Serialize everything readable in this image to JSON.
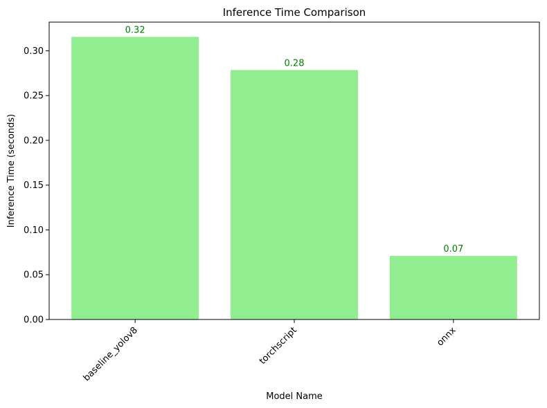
{
  "chart_data": {
    "type": "bar",
    "title": "Inference Time Comparison",
    "xlabel": "Model Name",
    "ylabel": "Inference Time (seconds)",
    "categories": [
      "baseline_yolov8",
      "torchscript",
      "onnx"
    ],
    "values": [
      0.3155,
      0.2785,
      0.071
    ],
    "data_labels": [
      "0.32",
      "0.28",
      "0.07"
    ],
    "ylim": [
      0,
      0.332
    ],
    "yticks": [
      0.0,
      0.05,
      0.1,
      0.15,
      0.2,
      0.25,
      0.3
    ],
    "ytick_labels": [
      "0.00",
      "0.05",
      "0.10",
      "0.15",
      "0.20",
      "0.25",
      "0.30"
    ],
    "grid": false,
    "bar_color": "#90ee90",
    "label_color": "#008000"
  }
}
